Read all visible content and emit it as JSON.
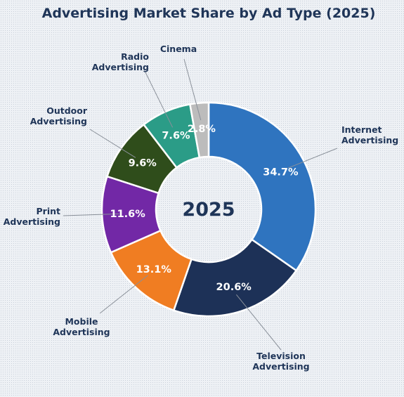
{
  "chart_data": {
    "type": "pie",
    "title": "Advertising Market Share by Ad Type (2025)",
    "center_label": "2025",
    "categories": [
      "Internet Advertising",
      "Television Advertising",
      "Mobile Advertising",
      "Print Advertising",
      "Outdoor Advertising",
      "Radio Advertising",
      "Cinema"
    ],
    "label_lines": [
      [
        "Internet",
        "Advertising"
      ],
      [
        "Television",
        "Advertising"
      ],
      [
        "Mobile",
        "Advertising"
      ],
      [
        "Print",
        "Advertising"
      ],
      [
        "Outdoor",
        "Advertising"
      ],
      [
        "Radio",
        "Advertising"
      ],
      [
        "Cinema"
      ]
    ],
    "values": [
      34.7,
      20.6,
      13.1,
      11.6,
      9.6,
      7.6,
      2.8
    ],
    "value_labels": [
      "34.7%",
      "20.6%",
      "13.1%",
      "11.6%",
      "9.6%",
      "7.6%",
      "2.8%"
    ],
    "colors": [
      "#2f74bf",
      "#1d3157",
      "#f07d22",
      "#7228a6",
      "#2f4d1b",
      "#2b9c87",
      "#bcbcbc"
    ],
    "donut": true,
    "start_angle": "12 o'clock",
    "direction": "clockwise"
  }
}
